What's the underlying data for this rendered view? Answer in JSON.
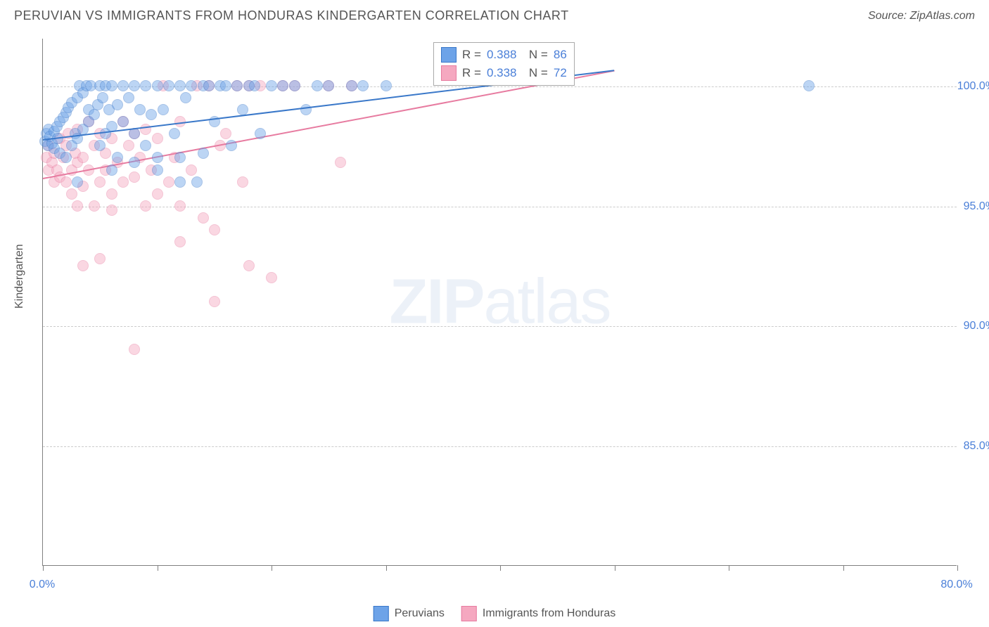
{
  "title": "PERUVIAN VS IMMIGRANTS FROM HONDURAS KINDERGARTEN CORRELATION CHART",
  "source": "Source: ZipAtlas.com",
  "watermark": {
    "bold": "ZIP",
    "light": "atlas"
  },
  "chart": {
    "type": "scatter",
    "ylabel": "Kindergarten",
    "x_range": [
      0,
      80
    ],
    "y_range": [
      80,
      102
    ],
    "y_ticks": [
      85.0,
      90.0,
      95.0,
      100.0
    ],
    "y_tick_format": "%.1f%%",
    "x_ticks": [
      0,
      10,
      20,
      30,
      40,
      50,
      60,
      70,
      80
    ],
    "x_labels_shown": {
      "0": "0.0%",
      "80": "80.0%"
    },
    "grid_color": "#cccccc",
    "axis_color": "#808080",
    "background_color": "#ffffff",
    "point_radius": 8,
    "point_opacity": 0.45,
    "series": [
      {
        "name": "Peruvians",
        "fill": "#6da3e8",
        "stroke": "#3a78c9",
        "r_value": "0.388",
        "n_value": "86",
        "trend": {
          "x1": 0,
          "y1": 97.8,
          "x2": 50,
          "y2": 100.7
        },
        "points": [
          [
            0.2,
            97.7
          ],
          [
            0.3,
            98.0
          ],
          [
            0.4,
            97.5
          ],
          [
            0.5,
            98.2
          ],
          [
            0.6,
            97.9
          ],
          [
            0.8,
            97.6
          ],
          [
            1.0,
            98.1
          ],
          [
            1.0,
            97.4
          ],
          [
            1.2,
            98.3
          ],
          [
            1.3,
            97.8
          ],
          [
            1.5,
            98.5
          ],
          [
            1.5,
            97.2
          ],
          [
            1.8,
            98.7
          ],
          [
            2.0,
            97.0
          ],
          [
            2.0,
            98.9
          ],
          [
            2.2,
            99.1
          ],
          [
            2.5,
            97.5
          ],
          [
            2.5,
            99.3
          ],
          [
            2.8,
            98.0
          ],
          [
            3.0,
            99.5
          ],
          [
            3.0,
            97.8
          ],
          [
            3.2,
            100.0
          ],
          [
            3.5,
            98.2
          ],
          [
            3.5,
            99.7
          ],
          [
            3.8,
            100.0
          ],
          [
            4.0,
            98.5
          ],
          [
            4.0,
            99.0
          ],
          [
            4.2,
            100.0
          ],
          [
            4.5,
            98.8
          ],
          [
            4.8,
            99.2
          ],
          [
            5.0,
            100.0
          ],
          [
            5.0,
            97.5
          ],
          [
            5.2,
            99.5
          ],
          [
            5.5,
            98.0
          ],
          [
            5.5,
            100.0
          ],
          [
            5.8,
            99.0
          ],
          [
            6.0,
            98.3
          ],
          [
            6.0,
            100.0
          ],
          [
            6.5,
            99.2
          ],
          [
            6.5,
            97.0
          ],
          [
            7.0,
            100.0
          ],
          [
            7.0,
            98.5
          ],
          [
            7.5,
            99.5
          ],
          [
            8.0,
            98.0
          ],
          [
            8.0,
            100.0
          ],
          [
            8.5,
            99.0
          ],
          [
            9.0,
            100.0
          ],
          [
            9.0,
            97.5
          ],
          [
            9.5,
            98.8
          ],
          [
            10.0,
            100.0
          ],
          [
            10.0,
            96.5
          ],
          [
            10.5,
            99.0
          ],
          [
            11.0,
            100.0
          ],
          [
            11.5,
            98.0
          ],
          [
            12.0,
            100.0
          ],
          [
            12.0,
            97.0
          ],
          [
            12.5,
            99.5
          ],
          [
            13.0,
            100.0
          ],
          [
            13.5,
            96.0
          ],
          [
            14.0,
            100.0
          ],
          [
            14.5,
            100.0
          ],
          [
            15.0,
            98.5
          ],
          [
            15.5,
            100.0
          ],
          [
            16.0,
            100.0
          ],
          [
            16.5,
            97.5
          ],
          [
            17.0,
            100.0
          ],
          [
            17.5,
            99.0
          ],
          [
            18.0,
            100.0
          ],
          [
            18.5,
            100.0
          ],
          [
            19.0,
            98.0
          ],
          [
            20.0,
            100.0
          ],
          [
            21.0,
            100.0
          ],
          [
            22.0,
            100.0
          ],
          [
            23.0,
            99.0
          ],
          [
            24.0,
            100.0
          ],
          [
            25.0,
            100.0
          ],
          [
            27.0,
            100.0
          ],
          [
            28.0,
            100.0
          ],
          [
            30.0,
            100.0
          ],
          [
            67.0,
            100.0
          ],
          [
            3.0,
            96.0
          ],
          [
            6.0,
            96.5
          ],
          [
            8.0,
            96.8
          ],
          [
            10.0,
            97.0
          ],
          [
            12.0,
            96.0
          ],
          [
            14.0,
            97.2
          ]
        ]
      },
      {
        "name": "Immigrants from Honduras",
        "fill": "#f5a8c0",
        "stroke": "#e77ba0",
        "r_value": "0.338",
        "n_value": "72",
        "trend": {
          "x1": 0,
          "y1": 96.2,
          "x2": 50,
          "y2": 100.7
        },
        "points": [
          [
            0.3,
            97.0
          ],
          [
            0.5,
            96.5
          ],
          [
            0.5,
            97.5
          ],
          [
            0.8,
            96.8
          ],
          [
            1.0,
            97.2
          ],
          [
            1.0,
            96.0
          ],
          [
            1.2,
            96.5
          ],
          [
            1.5,
            97.8
          ],
          [
            1.5,
            96.2
          ],
          [
            1.8,
            97.0
          ],
          [
            2.0,
            97.5
          ],
          [
            2.0,
            96.0
          ],
          [
            2.2,
            98.0
          ],
          [
            2.5,
            96.5
          ],
          [
            2.5,
            95.5
          ],
          [
            2.8,
            97.2
          ],
          [
            3.0,
            96.8
          ],
          [
            3.0,
            98.2
          ],
          [
            3.5,
            97.0
          ],
          [
            3.5,
            95.8
          ],
          [
            4.0,
            96.5
          ],
          [
            4.0,
            98.5
          ],
          [
            4.5,
            97.5
          ],
          [
            4.5,
            95.0
          ],
          [
            5.0,
            96.0
          ],
          [
            5.0,
            98.0
          ],
          [
            5.5,
            97.2
          ],
          [
            5.5,
            96.5
          ],
          [
            6.0,
            97.8
          ],
          [
            6.0,
            95.5
          ],
          [
            6.5,
            96.8
          ],
          [
            7.0,
            98.5
          ],
          [
            7.0,
            96.0
          ],
          [
            7.5,
            97.5
          ],
          [
            8.0,
            96.2
          ],
          [
            8.0,
            98.0
          ],
          [
            8.5,
            97.0
          ],
          [
            9.0,
            95.0
          ],
          [
            9.0,
            98.2
          ],
          [
            9.5,
            96.5
          ],
          [
            10.0,
            97.8
          ],
          [
            10.0,
            95.5
          ],
          [
            10.5,
            100.0
          ],
          [
            11.0,
            96.0
          ],
          [
            11.5,
            97.0
          ],
          [
            12.0,
            95.0
          ],
          [
            12.0,
            98.5
          ],
          [
            13.0,
            96.5
          ],
          [
            13.5,
            100.0
          ],
          [
            14.0,
            94.5
          ],
          [
            14.5,
            100.0
          ],
          [
            15.0,
            94.0
          ],
          [
            15.5,
            97.5
          ],
          [
            16.0,
            98.0
          ],
          [
            17.0,
            100.0
          ],
          [
            17.5,
            96.0
          ],
          [
            18.0,
            100.0
          ],
          [
            19.0,
            100.0
          ],
          [
            20.0,
            92.0
          ],
          [
            21.0,
            100.0
          ],
          [
            22.0,
            100.0
          ],
          [
            25.0,
            100.0
          ],
          [
            26.0,
            96.8
          ],
          [
            27.0,
            100.0
          ],
          [
            3.5,
            92.5
          ],
          [
            8.0,
            89.0
          ],
          [
            15.0,
            91.0
          ],
          [
            5.0,
            92.8
          ],
          [
            12.0,
            93.5
          ],
          [
            18.0,
            92.5
          ],
          [
            6.0,
            94.8
          ],
          [
            3.0,
            95.0
          ]
        ]
      }
    ]
  },
  "legendTop": {
    "r_label": "R =",
    "n_label": "N ="
  },
  "legendBottom": {
    "label1": "Peruvians",
    "label2": "Immigrants from Honduras"
  }
}
